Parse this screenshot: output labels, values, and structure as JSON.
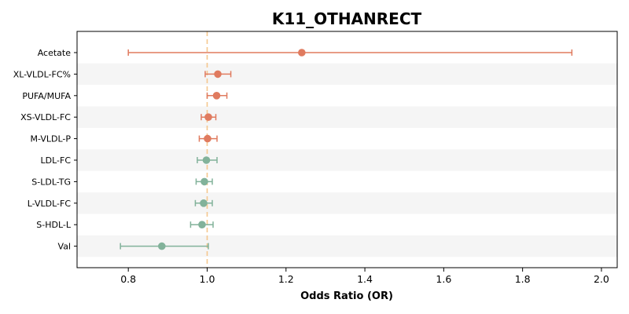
{
  "chart_data": {
    "type": "forest",
    "title": "K11_OTHANRECT",
    "xlabel": "Odds Ratio (OR)",
    "xlim": [
      0.67,
      2.04
    ],
    "xticks": [
      0.8,
      1.0,
      1.2,
      1.4,
      1.6,
      1.8,
      2.0
    ],
    "xtick_labels": [
      "0.8",
      "1.0",
      "1.2",
      "1.4",
      "1.6",
      "1.8",
      "2.0"
    ],
    "reference_line": 1.0,
    "colors": {
      "risk": "#e07b5f",
      "protective": "#82b29a",
      "reference": "#f5c78e",
      "band": "#f5f5f5"
    },
    "rows": [
      {
        "label": "Acetate",
        "or": 1.24,
        "lo": 0.8,
        "hi": 1.925,
        "group": "risk"
      },
      {
        "label": "XL-VLDL-FC%",
        "or": 1.027,
        "lo": 0.995,
        "hi": 1.06,
        "group": "risk"
      },
      {
        "label": "PUFA/MUFA",
        "or": 1.024,
        "lo": 1.0,
        "hi": 1.05,
        "group": "risk"
      },
      {
        "label": "XS-VLDL-FC",
        "or": 1.003,
        "lo": 0.985,
        "hi": 1.022,
        "group": "risk"
      },
      {
        "label": "M-VLDL-P",
        "or": 1.001,
        "lo": 0.98,
        "hi": 1.025,
        "group": "risk"
      },
      {
        "label": "LDL-FC",
        "or": 0.998,
        "lo": 0.975,
        "hi": 1.025,
        "group": "protective"
      },
      {
        "label": "S-LDL-TG",
        "or": 0.993,
        "lo": 0.972,
        "hi": 1.013,
        "group": "protective"
      },
      {
        "label": "L-VLDL-FC",
        "or": 0.991,
        "lo": 0.97,
        "hi": 1.013,
        "group": "protective"
      },
      {
        "label": "S-HDL-L",
        "or": 0.987,
        "lo": 0.958,
        "hi": 1.015,
        "group": "protective"
      },
      {
        "label": "Val",
        "or": 0.885,
        "lo": 0.78,
        "hi": 1.003,
        "group": "protective"
      }
    ]
  }
}
